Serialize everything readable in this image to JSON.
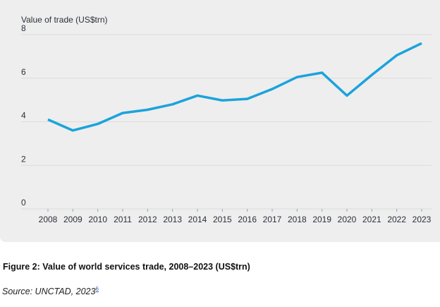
{
  "chart_data": {
    "type": "line",
    "title": "",
    "ylabel": "Value of trade (US$trn)",
    "xlabel": "",
    "ylim": [
      0,
      8
    ],
    "yticks": [
      0,
      2,
      4,
      6,
      8
    ],
    "grid": true,
    "categories": [
      "2008",
      "2009",
      "2010",
      "2011",
      "2012",
      "2013",
      "2014",
      "2015",
      "2016",
      "2017",
      "2018",
      "2019",
      "2020",
      "2021",
      "2022",
      "2023"
    ],
    "series": [
      {
        "name": "Value of world services trade",
        "color": "#1ba3dc",
        "values": [
          4.1,
          3.6,
          3.9,
          4.4,
          4.55,
          4.8,
          5.2,
          4.98,
          5.05,
          5.5,
          6.05,
          6.25,
          5.2,
          6.15,
          7.05,
          7.6
        ]
      }
    ]
  },
  "caption": {
    "title": "Figure 2: Value of world services trade, 2008–2023 (US$trn)",
    "source": "Source: UNCTAD, 2023",
    "footnote": "6"
  }
}
